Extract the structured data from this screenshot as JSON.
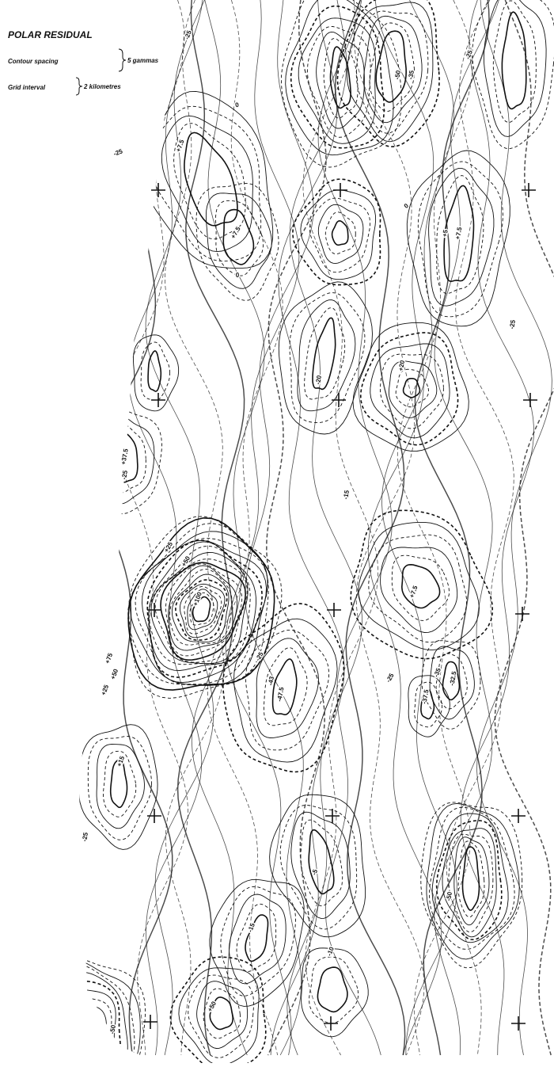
{
  "header": {
    "title": "POLAR RESIDUAL",
    "contour_spacing_label": "Contour spacing",
    "contour_spacing_value": "5 gammas",
    "grid_interval_label": "Grid interval",
    "grid_interval_value": "2 kilometres"
  },
  "contour_labels": [
    "-25",
    "-25",
    "-50",
    "-35",
    "-25",
    "+7.5",
    "+7.5",
    "0",
    "+5",
    "+7.5",
    "-25",
    "+20",
    "-20",
    "-15",
    "+37.5",
    "-25",
    "+25",
    "+50",
    "+100",
    "+75",
    "+50",
    "+25",
    "-25",
    "+7.5",
    "-43",
    "-47.5",
    "-25",
    "-35",
    "-37.5",
    "-32.5",
    "+15",
    "-25",
    "-50",
    "-5",
    "-15",
    "-10",
    "+50",
    "-50",
    "0",
    "0"
  ]
}
